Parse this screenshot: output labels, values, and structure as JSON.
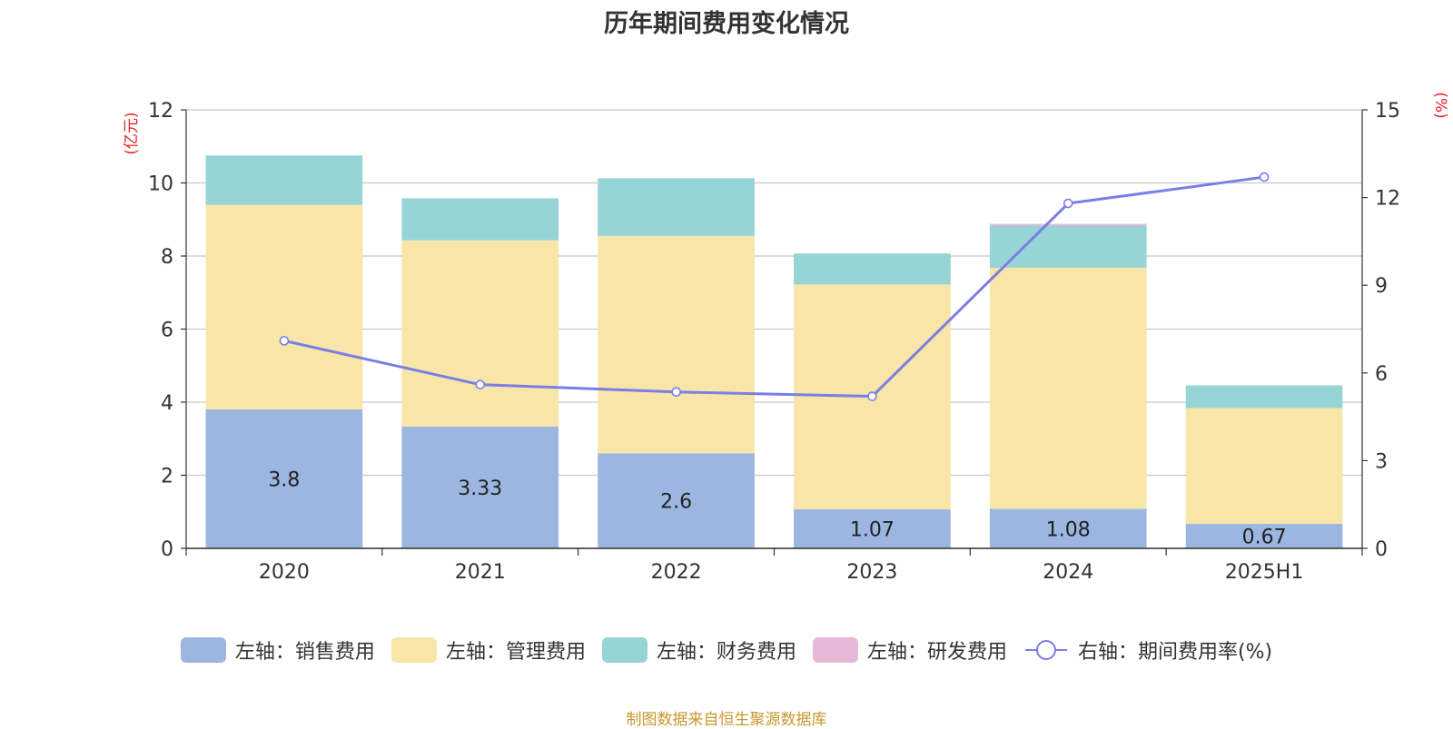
{
  "chart_data": {
    "type": "bar",
    "title": "历年期间费用变化情况",
    "categories": [
      "2020",
      "2021",
      "2022",
      "2023",
      "2024",
      "2025H1"
    ],
    "left_axis": {
      "label": "(亿元)",
      "ylim": [
        0,
        12
      ],
      "ticks": [
        "0",
        "2",
        "4",
        "6",
        "8",
        "10",
        "12"
      ]
    },
    "right_axis": {
      "label": "(%)",
      "ylim": [
        0,
        15
      ],
      "ticks": [
        "0",
        "3",
        "6",
        "9",
        "12",
        "15"
      ]
    },
    "stacked": true,
    "series": [
      {
        "name": "左轴：销售费用",
        "axis": "left",
        "type": "bar",
        "color": "#9bb6e0",
        "values": [
          3.8,
          3.33,
          2.6,
          1.07,
          1.08,
          0.67
        ],
        "labels": [
          "3.8",
          "3.33",
          "2.6",
          "1.07",
          "1.08",
          "0.67"
        ]
      },
      {
        "name": "左轴：管理费用",
        "axis": "left",
        "type": "bar",
        "color": "#f7e6a8",
        "values": [
          5.6,
          5.1,
          5.95,
          6.15,
          6.6,
          3.17
        ]
      },
      {
        "name": "左轴：财务费用",
        "axis": "left",
        "type": "bar",
        "color": "#97d4d6",
        "values": [
          1.35,
          1.15,
          1.58,
          0.85,
          1.15,
          0.62
        ]
      },
      {
        "name": "左轴：研发费用",
        "axis": "left",
        "type": "bar",
        "color": "#e8b8d8",
        "values": [
          0,
          0,
          0,
          0,
          0.05,
          0
        ]
      },
      {
        "name": "右轴：期间费用率(%)",
        "axis": "right",
        "type": "line",
        "color": "#7b7de8",
        "values": [
          7.1,
          5.6,
          5.35,
          5.2,
          11.8,
          12.7
        ]
      }
    ],
    "grid": true,
    "legend_position": "bottom"
  },
  "footer": {
    "source": "制图数据来自恒生聚源数据库"
  }
}
